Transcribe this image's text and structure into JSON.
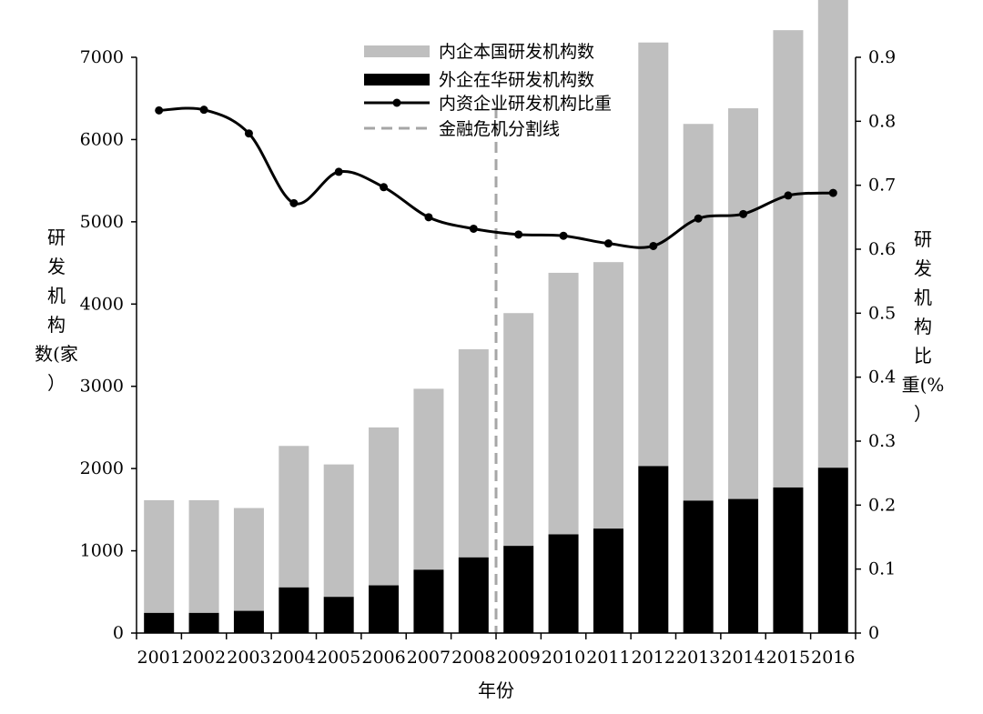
{
  "chart_data": {
    "type": "bar",
    "categories": [
      "2001",
      "2002",
      "2003",
      "2004",
      "2005",
      "2006",
      "2007",
      "2008",
      "2009",
      "2010",
      "2011",
      "2012",
      "2013",
      "2014",
      "2015",
      "2016"
    ],
    "series": [
      {
        "name": "内企本国研发机构数",
        "kind": "bar",
        "axis": "left",
        "color": "#bfbfbf",
        "values": [
          1370,
          1370,
          1250,
          1720,
          1610,
          1920,
          2200,
          2530,
          2830,
          3180,
          3240,
          5150,
          4580,
          4750,
          5560,
          6440
        ]
      },
      {
        "name": "外企在华研发机构数",
        "kind": "bar",
        "axis": "left",
        "color": "#000000",
        "values": [
          245,
          245,
          270,
          555,
          440,
          580,
          770,
          920,
          1060,
          1200,
          1270,
          2030,
          1610,
          1630,
          1770,
          2010
        ]
      },
      {
        "name": "内资企业研发机构比重",
        "kind": "line",
        "axis": "right",
        "color": "#000000",
        "values": [
          0.817,
          0.818,
          0.781,
          0.672,
          0.721,
          0.697,
          0.65,
          0.632,
          0.623,
          0.621,
          0.609,
          0.605,
          0.648,
          0.655,
          0.684,
          0.688
        ]
      }
    ],
    "reference_line": {
      "name": "金融危机分割线",
      "between": [
        "2008",
        "2009"
      ],
      "style": "dashed",
      "color": "#a6a6a6"
    },
    "xlabel": "年份",
    "ylabel": "研发机构数(家)",
    "ylabel_lines": [
      "研",
      "发",
      "机",
      "构",
      "数(家",
      "）"
    ],
    "ylabel2": "研发机构比重(%)",
    "ylabel2_lines": [
      "研",
      "发",
      "机",
      "构",
      "比",
      "重(%",
      "）"
    ],
    "ylim": [
      0,
      7000
    ],
    "yticks": [
      "0",
      "1000",
      "2000",
      "3000",
      "4000",
      "5000",
      "6000",
      "7000"
    ],
    "ylim2": [
      0,
      0.9
    ],
    "yticks2": [
      "0",
      "0.1",
      "0.2",
      "0.3",
      "0.4",
      "0.5",
      "0.6",
      "0.7",
      "0.8",
      "0.9"
    ],
    "grid": false,
    "legend_position": "top-center"
  }
}
